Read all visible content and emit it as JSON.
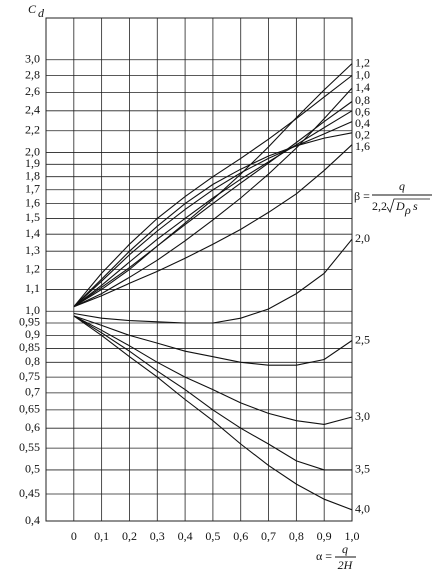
{
  "chart_data": {
    "type": "line",
    "y_label": {
      "text": "C",
      "subscript": "d"
    },
    "x_label": {
      "lhs": "α =",
      "numerator": "q",
      "denominator": "2H"
    },
    "beta_label": {
      "lhs": "β =",
      "numerator": "q",
      "coefficient": "2,2",
      "symbol": "D",
      "subscript": "ρ",
      "factor": "s"
    },
    "log_y": true,
    "grid": true,
    "color": "#111111",
    "x": [
      0,
      0.1,
      0.2,
      0.3,
      0.4,
      0.5,
      0.6,
      0.7,
      0.8,
      0.9,
      1.0
    ],
    "xlim": [
      -0.1,
      1.0
    ],
    "xticks": [
      0,
      {
        "value": 0.1,
        "label": "0,1"
      },
      {
        "value": 0.2,
        "label": "0,2"
      },
      {
        "value": 0.3,
        "label": "0,3"
      },
      {
        "value": 0.4,
        "label": "0,4"
      },
      {
        "value": 0.5,
        "label": "0,5"
      },
      {
        "value": 0.6,
        "label": "0,6"
      },
      {
        "value": 0.7,
        "label": "0,7"
      },
      {
        "value": 0.8,
        "label": "0,8"
      },
      {
        "value": 0.9,
        "label": "0,9"
      },
      {
        "value": 1.0,
        "label": "1,0"
      }
    ],
    "ylim": [
      0.4,
      3.6
    ],
    "yticks": [
      {
        "value": 3.0,
        "label": "3,0"
      },
      {
        "value": 2.8,
        "label": "2,8"
      },
      {
        "value": 2.6,
        "label": "2,6"
      },
      {
        "value": 2.4,
        "label": "2,4"
      },
      {
        "value": 2.2,
        "label": "2,2"
      },
      {
        "value": 2.0,
        "label": "2,0"
      },
      {
        "value": 1.9,
        "label": "1,9"
      },
      {
        "value": 1.8,
        "label": "1,8"
      },
      {
        "value": 1.7,
        "label": "1,7"
      },
      {
        "value": 1.6,
        "label": "1,6"
      },
      {
        "value": 1.5,
        "label": "1,5"
      },
      {
        "value": 1.4,
        "label": "1,4"
      },
      {
        "value": 1.3,
        "label": "1,3"
      },
      {
        "value": 1.2,
        "label": "1,2"
      },
      {
        "value": 1.1,
        "label": "1,1"
      },
      {
        "value": 1.0,
        "label": "1,0"
      },
      {
        "value": 0.95,
        "label": "0,95"
      },
      {
        "value": 0.9,
        "label": "0,9"
      },
      {
        "value": 0.85,
        "label": "0,85"
      },
      {
        "value": 0.8,
        "label": "0,8"
      },
      {
        "value": 0.75,
        "label": "0,75"
      },
      {
        "value": 0.7,
        "label": "0,7"
      },
      {
        "value": 0.65,
        "label": "0,65"
      },
      {
        "value": 0.6,
        "label": "0,6"
      },
      {
        "value": 0.55,
        "label": "0,55"
      },
      {
        "value": 0.5,
        "label": "0,5"
      },
      {
        "value": 0.45,
        "label": "0,45"
      },
      {
        "value": 0.4,
        "label": "0,4"
      }
    ],
    "series": [
      {
        "name": "1,2",
        "values": [
          1.02,
          1.1,
          1.2,
          1.33,
          1.47,
          1.63,
          1.82,
          2.05,
          2.33,
          2.63,
          2.95
        ]
      },
      {
        "name": "1,0",
        "values": [
          1.02,
          1.18,
          1.34,
          1.5,
          1.65,
          1.8,
          1.95,
          2.12,
          2.32,
          2.55,
          2.8
        ]
      },
      {
        "name": "1,4",
        "values": [
          1.02,
          1.08,
          1.16,
          1.25,
          1.36,
          1.49,
          1.64,
          1.82,
          2.04,
          2.32,
          2.65
        ]
      },
      {
        "name": "0,8",
        "values": [
          1.02,
          1.11,
          1.21,
          1.33,
          1.46,
          1.6,
          1.75,
          1.91,
          2.09,
          2.29,
          2.5
        ]
      },
      {
        "name": "0,6",
        "values": [
          1.02,
          1.12,
          1.24,
          1.37,
          1.5,
          1.64,
          1.78,
          1.92,
          2.07,
          2.23,
          2.4
        ]
      },
      {
        "name": "0,4",
        "values": [
          1.02,
          1.14,
          1.28,
          1.42,
          1.56,
          1.7,
          1.83,
          1.95,
          2.06,
          2.17,
          2.29
        ]
      },
      {
        "name": "0,2",
        "values": [
          1.02,
          1.15,
          1.3,
          1.45,
          1.6,
          1.74,
          1.86,
          1.97,
          2.06,
          2.13,
          2.18
        ]
      },
      {
        "name": "1,6",
        "values": [
          1.02,
          1.07,
          1.13,
          1.19,
          1.26,
          1.34,
          1.43,
          1.54,
          1.67,
          1.85,
          2.07
        ]
      },
      {
        "name": "2,0",
        "values": [
          0.99,
          0.97,
          0.96,
          0.955,
          0.95,
          0.95,
          0.97,
          1.01,
          1.08,
          1.18,
          1.37
        ]
      },
      {
        "name": "2,5",
        "values": [
          0.98,
          0.94,
          0.9,
          0.87,
          0.84,
          0.82,
          0.8,
          0.79,
          0.79,
          0.81,
          0.88
        ]
      },
      {
        "name": "3,0",
        "values": [
          0.98,
          0.92,
          0.86,
          0.8,
          0.75,
          0.71,
          0.67,
          0.64,
          0.62,
          0.61,
          0.63
        ]
      },
      {
        "name": "3,5",
        "values": [
          0.98,
          0.91,
          0.84,
          0.77,
          0.71,
          0.65,
          0.6,
          0.56,
          0.52,
          0.5,
          0.5
        ]
      },
      {
        "name": "4,0",
        "values": [
          0.98,
          0.9,
          0.82,
          0.75,
          0.68,
          0.62,
          0.56,
          0.51,
          0.47,
          0.44,
          0.42
        ]
      }
    ]
  }
}
